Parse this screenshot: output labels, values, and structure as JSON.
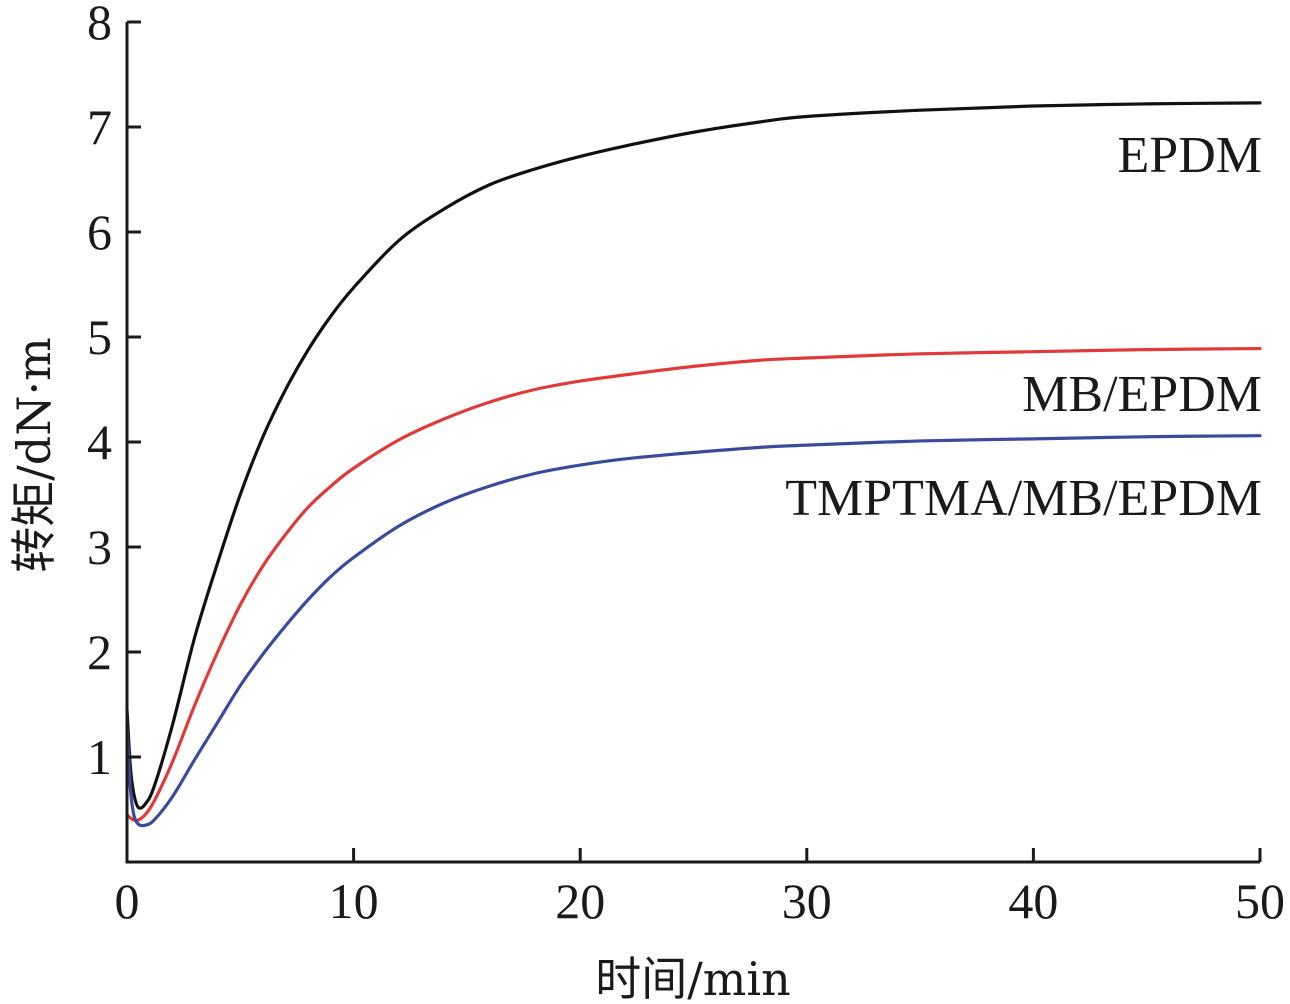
{
  "chart_data": {
    "type": "line",
    "title": "",
    "xlabel": "时间/min",
    "ylabel": "转矩/dN·m",
    "xlim": [
      0,
      50
    ],
    "ylim": [
      0,
      8
    ],
    "xticks": [
      0,
      10,
      20,
      30,
      40,
      50
    ],
    "yticks": [
      1,
      2,
      3,
      4,
      5,
      6,
      7,
      8
    ],
    "xtick_labels": [
      "0",
      "10",
      "20",
      "30",
      "40",
      "50"
    ],
    "ytick_labels": [
      "1",
      "2",
      "3",
      "4",
      "5",
      "6",
      "7",
      "8"
    ],
    "grid": false,
    "legend": "inline labels at right end of curves",
    "series": [
      {
        "name": "EPDM",
        "color": "#111111",
        "x": [
          0,
          0.15,
          0.3,
          0.5,
          0.8,
          1.2,
          2,
          3,
          4,
          5,
          6,
          7,
          8,
          9,
          10,
          12,
          14,
          16,
          18,
          20,
          22,
          25,
          28,
          30,
          35,
          40,
          45,
          50
        ],
        "y": [
          1.45,
          0.9,
          0.65,
          0.52,
          0.55,
          0.72,
          1.3,
          2.15,
          2.85,
          3.5,
          4.05,
          4.5,
          4.88,
          5.2,
          5.47,
          5.92,
          6.22,
          6.45,
          6.6,
          6.72,
          6.82,
          6.95,
          7.05,
          7.1,
          7.16,
          7.2,
          7.22,
          7.23
        ]
      },
      {
        "name": "MB/EPDM",
        "color": "#e03a3a",
        "x": [
          0,
          0.15,
          0.3,
          0.5,
          0.8,
          1.2,
          2,
          3,
          4,
          5,
          6,
          7,
          8,
          9,
          10,
          12,
          14,
          16,
          18,
          20,
          22,
          25,
          28,
          30,
          35,
          40,
          45,
          50
        ],
        "y": [
          0.45,
          0.42,
          0.4,
          0.4,
          0.45,
          0.58,
          0.95,
          1.5,
          2.0,
          2.45,
          2.82,
          3.12,
          3.38,
          3.58,
          3.75,
          4.02,
          4.22,
          4.38,
          4.5,
          4.58,
          4.64,
          4.72,
          4.78,
          4.8,
          4.84,
          4.86,
          4.88,
          4.89
        ]
      },
      {
        "name": "TMPTMA/MB/EPDM",
        "color": "#3a4b9a",
        "x": [
          0,
          0.15,
          0.3,
          0.5,
          0.8,
          1.2,
          2,
          3,
          4,
          5,
          6,
          7,
          8,
          9,
          10,
          12,
          14,
          16,
          18,
          20,
          22,
          25,
          28,
          30,
          35,
          40,
          45,
          50
        ],
        "y": [
          1.3,
          0.7,
          0.45,
          0.36,
          0.35,
          0.4,
          0.62,
          0.98,
          1.33,
          1.68,
          1.98,
          2.25,
          2.5,
          2.72,
          2.9,
          3.2,
          3.42,
          3.58,
          3.7,
          3.78,
          3.84,
          3.9,
          3.95,
          3.97,
          4.01,
          4.03,
          4.05,
          4.06
        ]
      }
    ],
    "annotations": [
      "EPDM",
      "MB/EPDM",
      "TMPTMA/MB/EPDM"
    ]
  }
}
